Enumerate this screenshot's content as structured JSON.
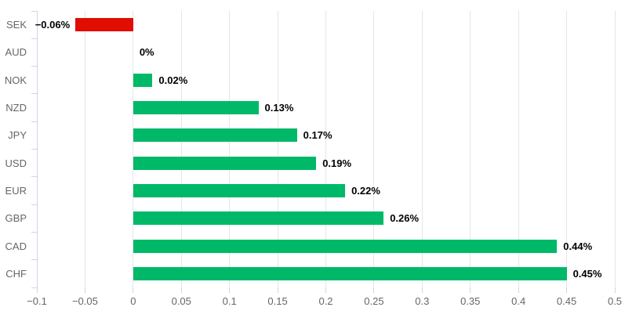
{
  "chart_data": {
    "type": "bar",
    "orientation": "horizontal",
    "title": "",
    "xlabel": "",
    "ylabel": "",
    "legend": false,
    "grid": true,
    "categories": [
      "SEK",
      "AUD",
      "NOK",
      "NZD",
      "JPY",
      "USD",
      "EUR",
      "GBP",
      "CAD",
      "CHF"
    ],
    "values": [
      -0.06,
      0,
      0.02,
      0.13,
      0.17,
      0.19,
      0.22,
      0.26,
      0.44,
      0.45
    ],
    "data_labels": [
      "−0.06%",
      "0%",
      "0.02%",
      "0.13%",
      "0.17%",
      "0.19%",
      "0.22%",
      "0.26%",
      "0.44%",
      "0.45%"
    ],
    "xlim": [
      -0.1,
      0.5
    ],
    "x_ticks": [
      -0.1,
      -0.05,
      0,
      0.05,
      0.1,
      0.15,
      0.2,
      0.25,
      0.3,
      0.35,
      0.4,
      0.45,
      0.5
    ],
    "x_tick_labels": [
      "−0.1",
      "−0.05",
      "0",
      "0.05",
      "0.1",
      "0.15",
      "0.2",
      "0.25",
      "0.3",
      "0.35",
      "0.4",
      "0.45",
      "0.5"
    ],
    "colors": {
      "positive": "#00b968",
      "negative": "#e00d00",
      "gridline": "#e6e6e6",
      "axis_line": "#ccd6eb",
      "tick": "#ccd6eb",
      "axis_label_text": "#666666",
      "data_label_text": "#000000"
    }
  }
}
